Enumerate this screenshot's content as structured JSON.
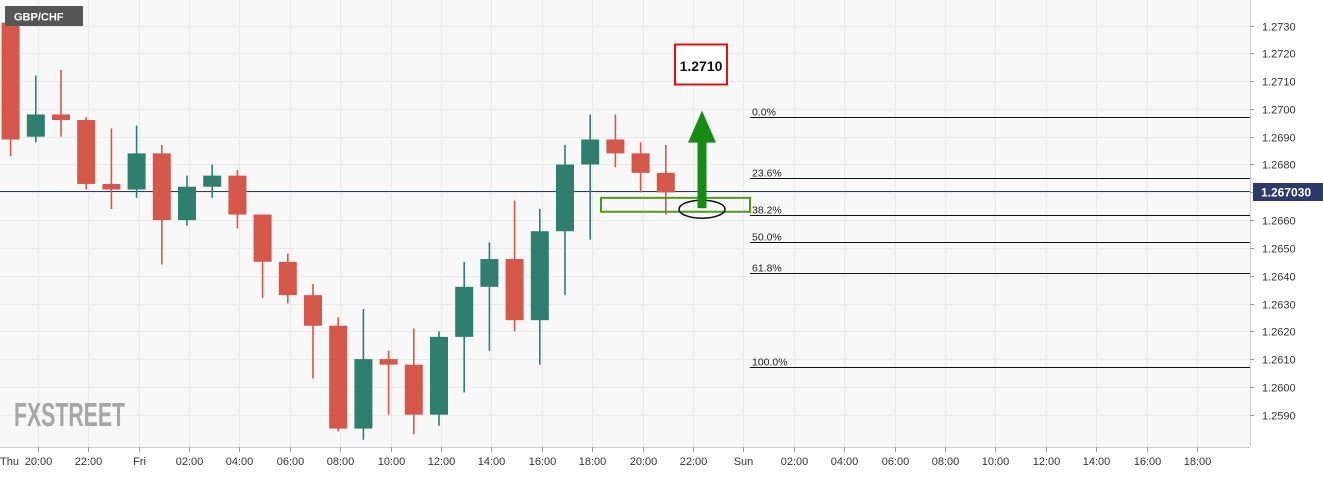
{
  "symbol": "GBP/CHF",
  "brand": {
    "fx": "FX",
    "street": "STREET"
  },
  "target_label": "1.2710",
  "current_price": {
    "label": "1.267030",
    "value": 1.26703
  },
  "colors": {
    "up": "#2e7f6e",
    "down": "#d4574a",
    "grid": "#e9e9e9",
    "axis_text": "#333333",
    "price_line": "#2b3a68",
    "price_badge": "#2b3a68",
    "arrow": "#148c14",
    "box": "#4f9a19",
    "target_box": "#e01414",
    "symbol_badge": "#555555",
    "brand": "#a7a7a7",
    "plot_bg": "#f8f8f8"
  },
  "chart_data": {
    "type": "candlestick",
    "title": "GBP/CHF",
    "ylim": [
      1.258,
      1.2735
    ],
    "y_ticks": [
      1.259,
      1.26,
      1.261,
      1.262,
      1.263,
      1.264,
      1.265,
      1.266,
      1.267,
      1.268,
      1.269,
      1.27,
      1.271,
      1.272,
      1.273
    ],
    "y_tick_labels": [
      "1.2590",
      "1.2600",
      "1.2610",
      "1.2620",
      "1.2630",
      "1.2640",
      "1.2650",
      "1.2660",
      "1.2670",
      "1.2680",
      "1.2690",
      "1.2700",
      "1.2710",
      "1.2720",
      "1.2730"
    ],
    "x_tick_labels": [
      "Thu",
      "20:00",
      "22:00",
      "Fri",
      "02:00",
      "04:00",
      "06:00",
      "08:00",
      "10:00",
      "12:00",
      "14:00",
      "16:00",
      "18:00",
      "20:00",
      "22:00",
      "Sun",
      "02:00",
      "04:00",
      "06:00",
      "08:00",
      "10:00",
      "12:00",
      "14:00",
      "16:00",
      "18:00"
    ],
    "candle_interval": "1h",
    "first_candle_time": "Thu 19:00",
    "grid": true,
    "candles": [
      {
        "o": 1.2731,
        "h": 1.2735,
        "l": 1.2683,
        "c": 1.2689
      },
      {
        "o": 1.269,
        "h": 1.2712,
        "l": 1.2688,
        "c": 1.2698
      },
      {
        "o": 1.2698,
        "h": 1.2714,
        "l": 1.269,
        "c": 1.2696
      },
      {
        "o": 1.2696,
        "h": 1.2697,
        "l": 1.2671,
        "c": 1.2673
      },
      {
        "o": 1.2673,
        "h": 1.2693,
        "l": 1.2664,
        "c": 1.2671
      },
      {
        "o": 1.2671,
        "h": 1.2694,
        "l": 1.2668,
        "c": 1.2684
      },
      {
        "o": 1.2684,
        "h": 1.2687,
        "l": 1.2644,
        "c": 1.266
      },
      {
        "o": 1.266,
        "h": 1.2676,
        "l": 1.2658,
        "c": 1.2672
      },
      {
        "o": 1.2672,
        "h": 1.268,
        "l": 1.2668,
        "c": 1.2676
      },
      {
        "o": 1.2676,
        "h": 1.2678,
        "l": 1.2657,
        "c": 1.2662
      },
      {
        "o": 1.2662,
        "h": 1.2662,
        "l": 1.2632,
        "c": 1.2645
      },
      {
        "o": 1.2645,
        "h": 1.2648,
        "l": 1.263,
        "c": 1.2633
      },
      {
        "o": 1.2633,
        "h": 1.2637,
        "l": 1.2603,
        "c": 1.2622
      },
      {
        "o": 1.2622,
        "h": 1.2625,
        "l": 1.2584,
        "c": 1.2585
      },
      {
        "o": 1.2585,
        "h": 1.2628,
        "l": 1.2581,
        "c": 1.261
      },
      {
        "o": 1.261,
        "h": 1.2613,
        "l": 1.259,
        "c": 1.2608
      },
      {
        "o": 1.2608,
        "h": 1.2621,
        "l": 1.2583,
        "c": 1.259
      },
      {
        "o": 1.259,
        "h": 1.262,
        "l": 1.2586,
        "c": 1.2618
      },
      {
        "o": 1.2618,
        "h": 1.2645,
        "l": 1.2598,
        "c": 1.2636
      },
      {
        "o": 1.2636,
        "h": 1.2652,
        "l": 1.2613,
        "c": 1.2646
      },
      {
        "o": 1.2646,
        "h": 1.2667,
        "l": 1.262,
        "c": 1.2624
      },
      {
        "o": 1.2624,
        "h": 1.2664,
        "l": 1.2608,
        "c": 1.2656
      },
      {
        "o": 1.2656,
        "h": 1.2687,
        "l": 1.2633,
        "c": 1.268
      },
      {
        "o": 1.268,
        "h": 1.2698,
        "l": 1.2653,
        "c": 1.2689
      },
      {
        "o": 1.2689,
        "h": 1.2698,
        "l": 1.2679,
        "c": 1.2684
      },
      {
        "o": 1.2684,
        "h": 1.2688,
        "l": 1.267,
        "c": 1.2677
      },
      {
        "o": 1.2677,
        "h": 1.2687,
        "l": 1.2662,
        "c": 1.267
      }
    ],
    "fibonacci": [
      {
        "label": "0.0%",
        "value": 1.2697
      },
      {
        "label": "23.6%",
        "value": 1.2675
      },
      {
        "label": "38.2%",
        "value": 1.2662
      },
      {
        "label": "50.0%",
        "value": 1.2652
      },
      {
        "label": "61.8%",
        "value": 1.2641
      },
      {
        "label": "100.0%",
        "value": 1.2607
      }
    ],
    "annotations": {
      "target_value": 1.271,
      "support_zone": [
        1.2663,
        1.2668
      ],
      "arrow_from": 1.2665,
      "arrow_to": 1.2699
    }
  }
}
